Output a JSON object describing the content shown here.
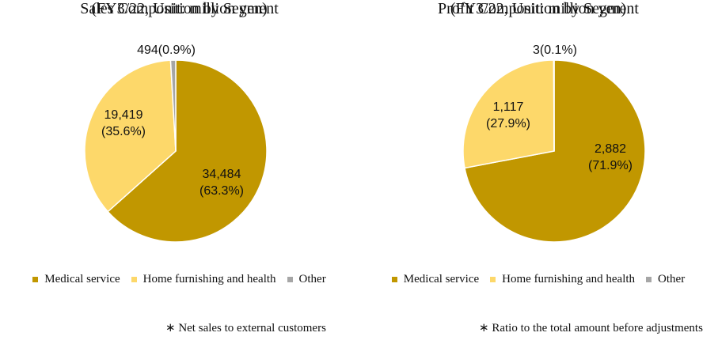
{
  "colors": {
    "medical": "#C19700",
    "home": "#FDD86A",
    "other": "#A6A6A6"
  },
  "chart_data": [
    {
      "type": "pie",
      "title": "Sales Composition by Segment",
      "subtitle": "(FY3/22, Unit: million yen)",
      "slices": [
        {
          "label": "Medical service",
          "value": 34484,
          "percent": 63.3,
          "label_lines": [
            "34,484",
            "(63.3%)"
          ]
        },
        {
          "label": "Home furnishing and health",
          "value": 19419,
          "percent": 35.6,
          "label_lines": [
            "19,419",
            "(35.6%)"
          ]
        },
        {
          "label": "Other",
          "value": 494,
          "percent": 0.9,
          "label_lines": [
            "494(0.9%)"
          ]
        }
      ],
      "legend": [
        "Medical service",
        "Home furnishing and health",
        "Other"
      ],
      "legend_position": "bottom",
      "footnote": "∗ Net sales to external customers"
    },
    {
      "type": "pie",
      "title": "Profit Composition by Segment",
      "subtitle": "(FY3/22, Unit: million yen)",
      "slices": [
        {
          "label": "Medical service",
          "value": 2882,
          "percent": 71.9,
          "label_lines": [
            "2,882",
            "(71.9%)"
          ]
        },
        {
          "label": "Home furnishing and health",
          "value": 1117,
          "percent": 27.9,
          "label_lines": [
            "1,117",
            "(27.9%)"
          ]
        },
        {
          "label": "Other",
          "value": 3,
          "percent": 0.1,
          "label_lines": [
            "3(0.1%)"
          ]
        }
      ],
      "legend": [
        "Medical service",
        "Home furnishing and health",
        "Other"
      ],
      "legend_position": "bottom",
      "footnote": "∗ Ratio to the total amount before adjustments"
    }
  ]
}
